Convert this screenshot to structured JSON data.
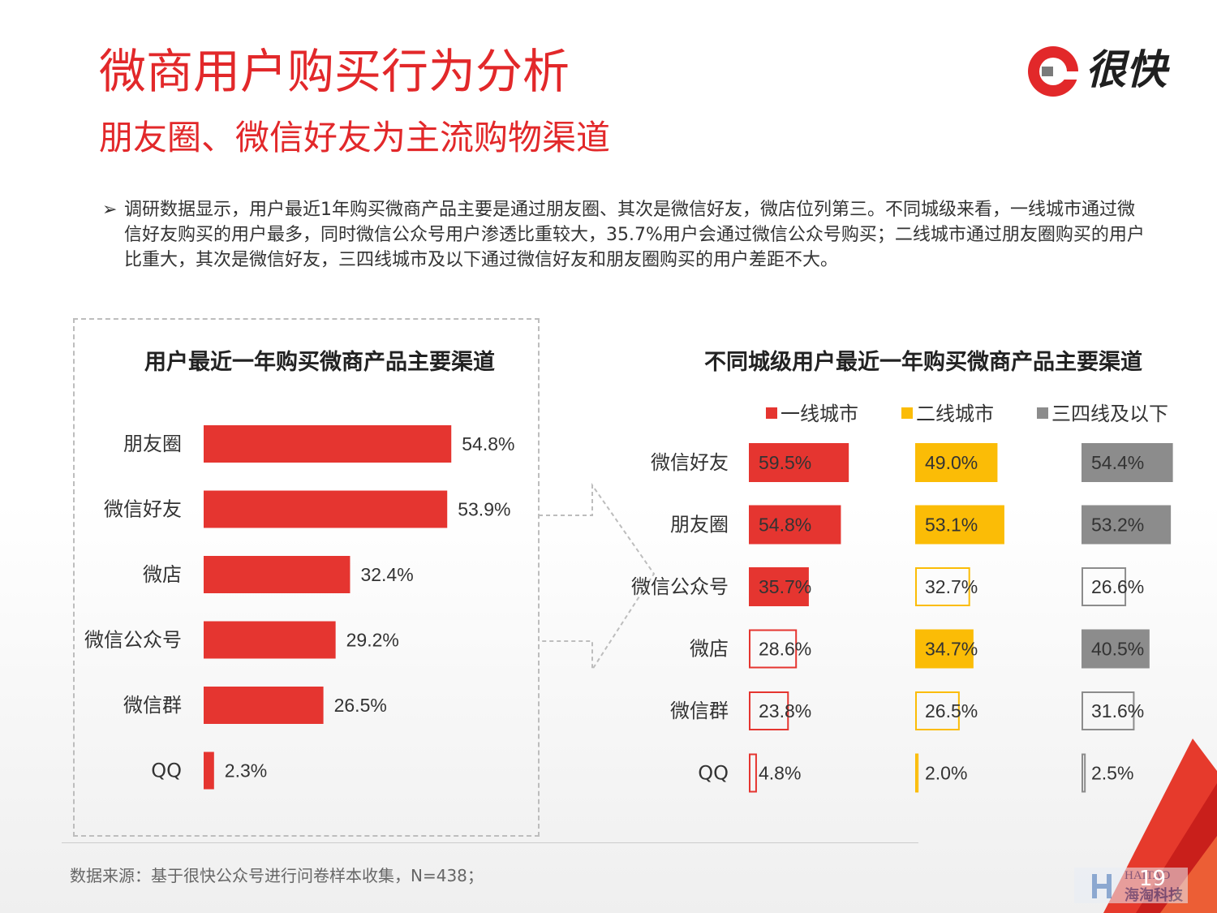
{
  "title": "微商用户购买行为分析",
  "subtitle": "朋友圈、微信好友为主流购物渠道",
  "logo_text": "很快",
  "summary_arrow": "➢",
  "summary": "调研数据显示，用户最近1年购买微商产品主要是通过朋友圈、其次是微信好友，微店位列第三。不同城级来看，一线城市通过微信好友购买的用户最多，同时微信公众号用户渗透比重较大，35.7%用户会通过微信公众号购买；二线城市通过朋友圈购买的用户比重大，其次是微信好友，三四线城市及以下通过微信好友和朋友圈购买的用户差距不大。",
  "source": "数据来源：基于很快公众号进行问卷样本收集，N=438；",
  "page_number": "19",
  "watermark_text": "海淘科技",
  "watermark_latin": "HAITAO",
  "colors": {
    "brand_red": "#e2282a",
    "bar_red": "#e53530",
    "yellow": "#fbbc06",
    "gray": "#8c8c8c"
  },
  "chart_data": [
    {
      "type": "bar",
      "orientation": "horizontal",
      "title": "用户最近一年购买微商产品主要渠道",
      "categories": [
        "朋友圈",
        "微信好友",
        "微店",
        "微信公众号",
        "微信群",
        "QQ"
      ],
      "values": [
        54.8,
        53.9,
        32.4,
        29.2,
        26.5,
        2.3
      ],
      "value_labels": [
        "54.8%",
        "53.9%",
        "32.4%",
        "29.2%",
        "26.5%",
        "2.3%"
      ],
      "unit": "%",
      "color": "#e53530"
    },
    {
      "type": "bar",
      "orientation": "horizontal",
      "title": "不同城级用户最近一年购买微商产品主要渠道",
      "legend_position": "top",
      "categories": [
        "微信好友",
        "朋友圈",
        "微信公众号",
        "微店",
        "微信群",
        "QQ"
      ],
      "series": [
        {
          "name": "一线城市",
          "color": "#e53530",
          "values": [
            59.5,
            54.8,
            35.7,
            28.6,
            23.8,
            4.8
          ],
          "value_labels": [
            "59.5%",
            "54.8%",
            "35.7%",
            "28.6%",
            "23.8%",
            "4.8%"
          ],
          "filled": [
            true,
            true,
            true,
            false,
            false,
            false
          ]
        },
        {
          "name": "二线城市",
          "color": "#fbbc06",
          "values": [
            49.0,
            53.1,
            32.7,
            34.7,
            26.5,
            2.0
          ],
          "value_labels": [
            "49.0%",
            "53.1%",
            "32.7%",
            "34.7%",
            "26.5%",
            "2.0%"
          ],
          "filled": [
            true,
            true,
            false,
            true,
            false,
            false
          ]
        },
        {
          "name": "三四线及以下",
          "color": "#8c8c8c",
          "values": [
            54.4,
            53.2,
            26.6,
            40.5,
            31.6,
            2.5
          ],
          "value_labels": [
            "54.4%",
            "53.2%",
            "26.6%",
            "40.5%",
            "31.6%",
            "2.5%"
          ],
          "filled": [
            true,
            true,
            false,
            true,
            false,
            false
          ]
        }
      ],
      "unit": "%"
    }
  ]
}
